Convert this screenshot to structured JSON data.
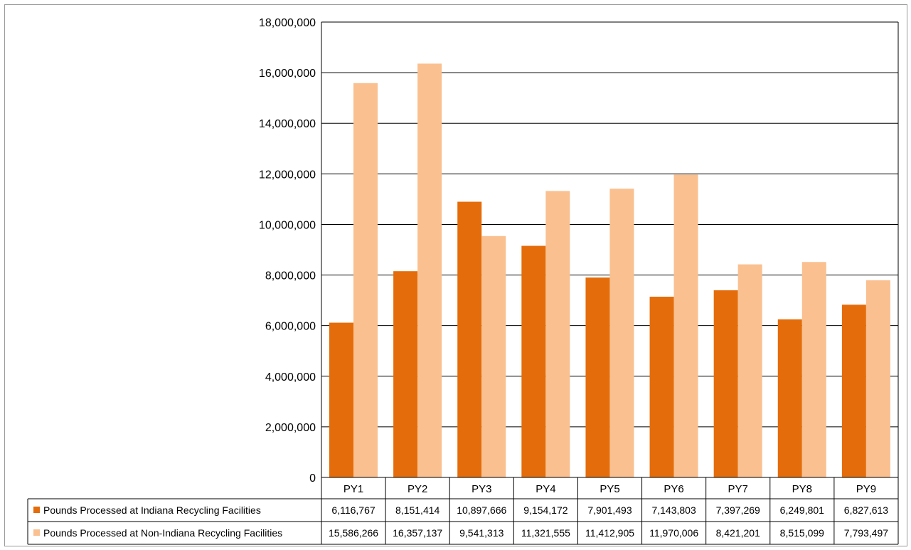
{
  "chart_data": {
    "type": "bar",
    "categories": [
      "PY1",
      "PY2",
      "PY3",
      "PY4",
      "PY5",
      "PY6",
      "PY7",
      "PY8",
      "PY9"
    ],
    "series": [
      {
        "name": "Pounds Processed at Indiana Recycling Facilities",
        "color": "#E46C0A",
        "values": [
          6116767,
          8151414,
          10897666,
          9154172,
          7901493,
          7143803,
          7397269,
          6249801,
          6827613
        ],
        "labels": [
          "6,116,767",
          "8,151,414",
          "10,897,666",
          "9,154,172",
          "7,901,493",
          "7,143,803",
          "7,397,269",
          "6,249,801",
          "6,827,613"
        ]
      },
      {
        "name": "Pounds Processed at Non-Indiana Recycling Facilities",
        "color": "#FAC090",
        "values": [
          15586266,
          16357137,
          9541313,
          11321555,
          11412905,
          11970006,
          8421201,
          8515099,
          7793497
        ],
        "labels": [
          "15,586,266",
          "16,357,137",
          "9,541,313",
          "11,321,555",
          "11,412,905",
          "11,970,006",
          "8,421,201",
          "8,515,099",
          "7,793,497"
        ]
      }
    ],
    "y_ticks": [
      "0",
      "2,000,000",
      "4,000,000",
      "6,000,000",
      "8,000,000",
      "10,000,000",
      "12,000,000",
      "14,000,000",
      "16,000,000",
      "18,000,000"
    ],
    "ylim": [
      0,
      18000000
    ],
    "grid": true,
    "legend": "data-table"
  }
}
